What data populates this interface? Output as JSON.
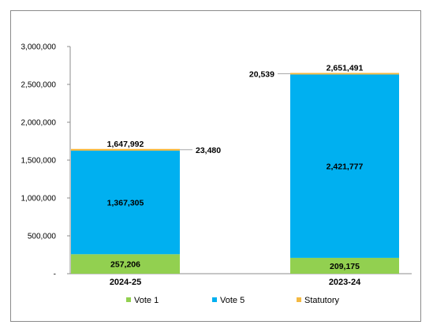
{
  "chart_data": {
    "type": "bar",
    "stacked": true,
    "categories": [
      "2024-25",
      "2023-24"
    ],
    "series": [
      {
        "name": "Vote 1",
        "values": [
          257206,
          209175
        ],
        "color": "#92d050",
        "labels": [
          "257,206",
          "209,175"
        ]
      },
      {
        "name": "Vote 5",
        "values": [
          1367305,
          2421777
        ],
        "color": "#00b0f0",
        "labels": [
          "1,367,305",
          "2,421,777"
        ]
      },
      {
        "name": "Statutory",
        "values": [
          23480,
          20539
        ],
        "color": "#f4b942",
        "labels": [
          "23,480",
          "20,539"
        ]
      }
    ],
    "totals": [
      1647992,
      2651491
    ],
    "total_labels": [
      "1,647,992",
      "2,651,491"
    ],
    "ylim": [
      0,
      3000000
    ],
    "yticks": [
      0,
      500000,
      1000000,
      1500000,
      2000000,
      2500000,
      3000000
    ],
    "ytick_labels": [
      "-",
      "500,000",
      "1,000,000",
      "1,500,000",
      "2,000,000",
      "2,500,000",
      "3,000,000"
    ],
    "grid": false,
    "legend_position": "bottom"
  }
}
